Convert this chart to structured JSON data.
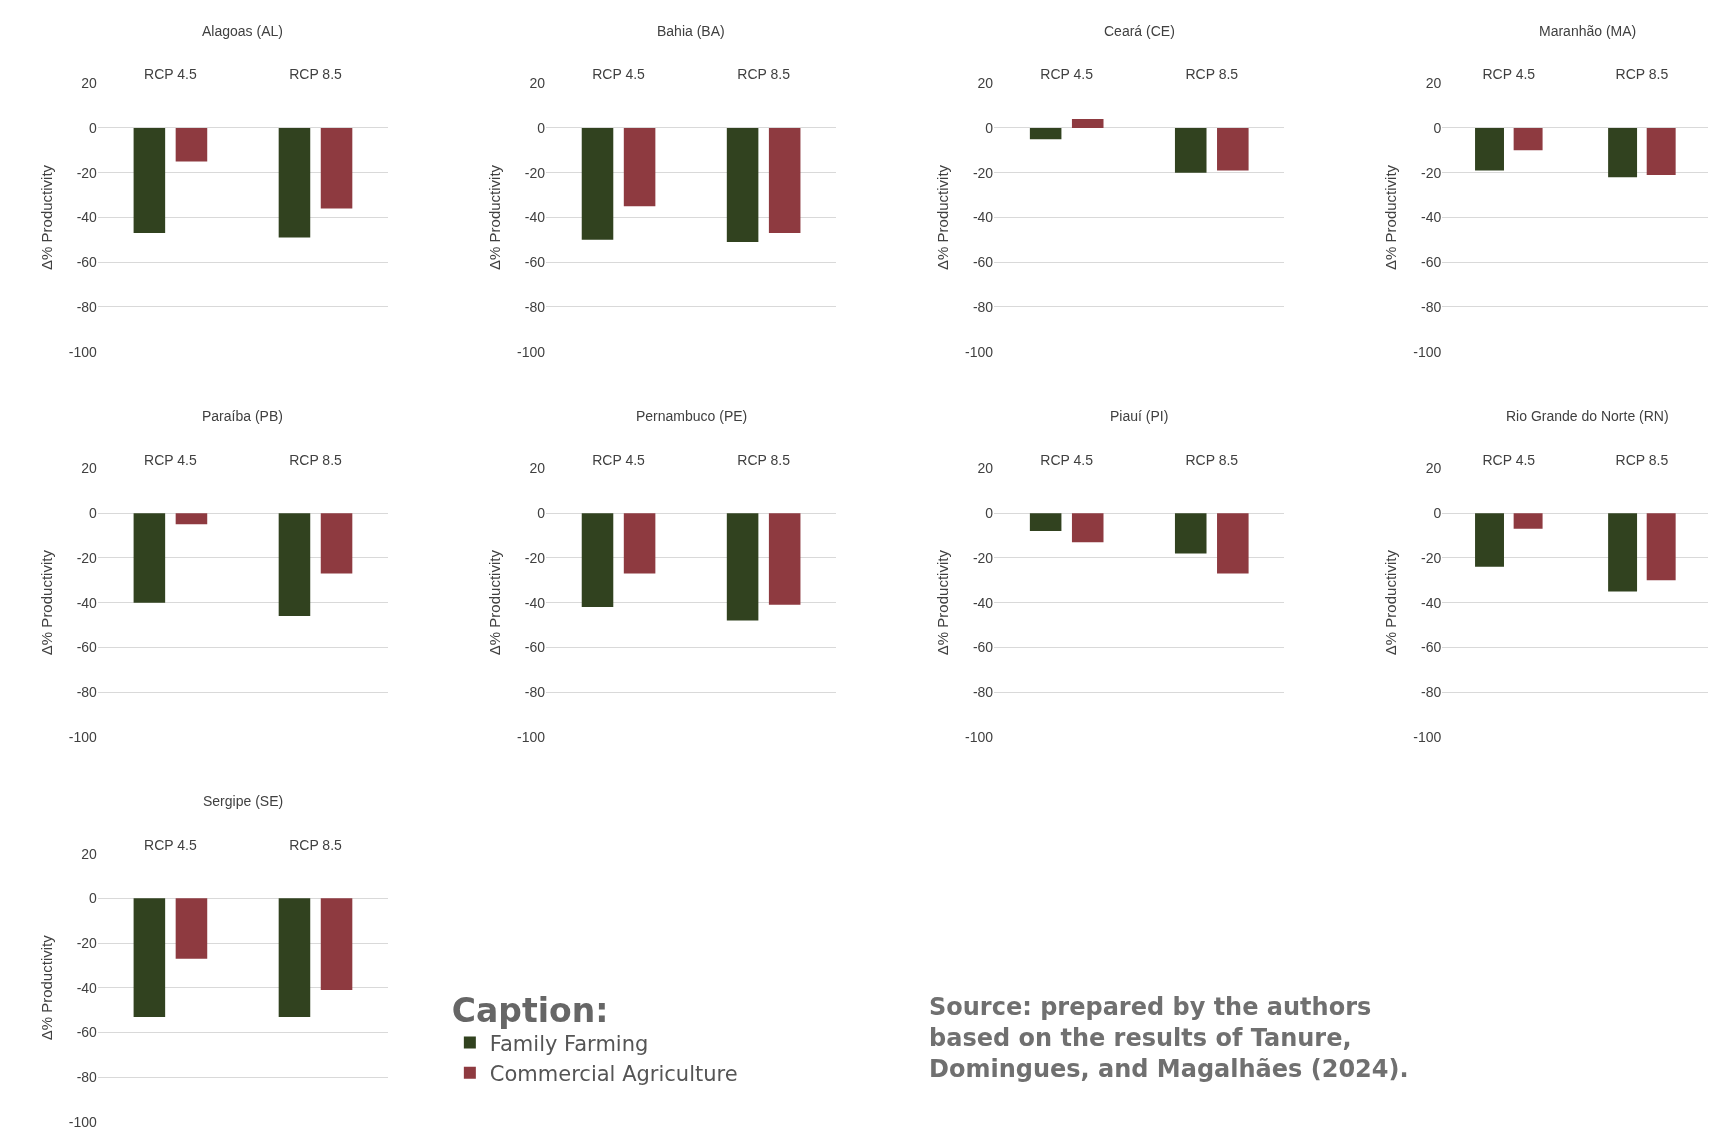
{
  "chart_data": [
    {
      "type": "bar",
      "title": "Alagoas (AL)",
      "ylabel": "Δ% Productivity",
      "categories": [
        "RCP 4.5",
        "RCP 8.5"
      ],
      "ylim": [
        -100,
        20
      ],
      "yticks": [
        -100,
        -80,
        -60,
        -40,
        -20,
        0,
        20
      ],
      "grid": "y",
      "series": [
        {
          "color": "#31421f",
          "values": [
            -47,
            -49
          ]
        },
        {
          "color": "#8e3a40",
          "values": [
            -15,
            -36
          ]
        }
      ]
    },
    {
      "type": "bar",
      "title": "Bahia (BA)",
      "ylabel": "Δ% Productivity",
      "categories": [
        "RCP 4.5",
        "RCP 8.5"
      ],
      "ylim": [
        -100,
        20
      ],
      "yticks": [
        -100,
        -80,
        -60,
        -40,
        -20,
        0,
        20
      ],
      "grid": "y",
      "series": [
        {
          "color": "#31421f",
          "values": [
            -50,
            -51
          ]
        },
        {
          "color": "#8e3a40",
          "values": [
            -35,
            -47
          ]
        }
      ]
    },
    {
      "type": "bar",
      "title": "Ceará (CE)",
      "ylabel": "Δ% Productivity",
      "categories": [
        "RCP 4.5",
        "RCP 8.5"
      ],
      "ylim": [
        -100,
        20
      ],
      "yticks": [
        -100,
        -80,
        -60,
        -40,
        -20,
        0,
        20
      ],
      "grid": "y",
      "series": [
        {
          "color": "#31421f",
          "values": [
            -5,
            -20
          ]
        },
        {
          "color": "#8e3a40",
          "values": [
            4,
            -19
          ]
        }
      ]
    },
    {
      "type": "bar",
      "title": "Maranhão (MA)",
      "ylabel": "Δ% Productivity",
      "categories": [
        "RCP 4.5",
        "RCP 8.5"
      ],
      "ylim": [
        -100,
        20
      ],
      "yticks": [
        -100,
        -80,
        -60,
        -40,
        -20,
        0,
        20
      ],
      "grid": "y",
      "series": [
        {
          "color": "#31421f",
          "values": [
            -19,
            -22
          ]
        },
        {
          "color": "#8e3a40",
          "values": [
            -10,
            -21
          ]
        }
      ]
    },
    {
      "type": "bar",
      "title": "Paraíba (PB)",
      "ylabel": "Δ% Productivity",
      "categories": [
        "RCP 4.5",
        "RCP 8.5"
      ],
      "ylim": [
        -100,
        20
      ],
      "yticks": [
        -100,
        -80,
        -60,
        -40,
        -20,
        0,
        20
      ],
      "grid": "y",
      "series": [
        {
          "color": "#31421f",
          "values": [
            -40,
            -46
          ]
        },
        {
          "color": "#8e3a40",
          "values": [
            -5,
            -27
          ]
        }
      ]
    },
    {
      "type": "bar",
      "title": "Pernambuco (PE)",
      "ylabel": "Δ% Productivity",
      "categories": [
        "RCP 4.5",
        "RCP 8.5"
      ],
      "ylim": [
        -100,
        20
      ],
      "yticks": [
        -100,
        -80,
        -60,
        -40,
        -20,
        0,
        20
      ],
      "grid": "y",
      "series": [
        {
          "color": "#31421f",
          "values": [
            -42,
            -48
          ]
        },
        {
          "color": "#8e3a40",
          "values": [
            -27,
            -41
          ]
        }
      ]
    },
    {
      "type": "bar",
      "title": "Piauí (PI)",
      "ylabel": "Δ% Productivity",
      "categories": [
        "RCP 4.5",
        "RCP 8.5"
      ],
      "ylim": [
        -100,
        20
      ],
      "yticks": [
        -100,
        -80,
        -60,
        -40,
        -20,
        0,
        20
      ],
      "grid": "y",
      "series": [
        {
          "color": "#31421f",
          "values": [
            -8,
            -18
          ]
        },
        {
          "color": "#8e3a40",
          "values": [
            -13,
            -27
          ]
        }
      ]
    },
    {
      "type": "bar",
      "title": "Rio Grande do Norte (RN)",
      "ylabel": "Δ% Productivity",
      "categories": [
        "RCP 4.5",
        "RCP 8.5"
      ],
      "ylim": [
        -100,
        20
      ],
      "yticks": [
        -100,
        -80,
        -60,
        -40,
        -20,
        0,
        20
      ],
      "grid": "y",
      "series": [
        {
          "color": "#31421f",
          "values": [
            -24,
            -35
          ]
        },
        {
          "color": "#8e3a40",
          "values": [
            -7,
            -30
          ]
        }
      ]
    },
    {
      "type": "bar",
      "title": "Sergipe (SE)",
      "ylabel": "Δ% Productivity",
      "categories": [
        "RCP 4.5",
        "RCP 8.5"
      ],
      "ylim": [
        -100,
        20
      ],
      "yticks": [
        -100,
        -80,
        -60,
        -40,
        -20,
        0,
        20
      ],
      "grid": "y",
      "legend": "bottom",
      "legend_title": "Caption:",
      "annotations": [
        "Source: prepared by the authors based on the results of Tanure, Domingues, and Magalhães (2024)."
      ],
      "series": [
        {
          "name": "Family Farming",
          "color": "#31421f",
          "values": [
            -53,
            -53
          ]
        },
        {
          "name": "Commercial Agriculture",
          "color": "#8e3a40",
          "values": [
            -27,
            -41
          ]
        }
      ]
    }
  ]
}
